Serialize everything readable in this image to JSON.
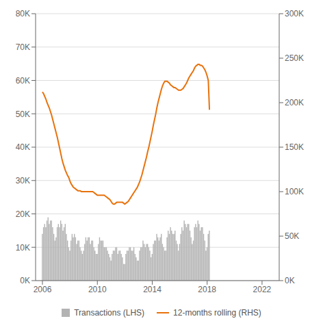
{
  "chart_data": {
    "type": "bar",
    "x": [
      2006,
      2006.0833333333333,
      2006.1666666666667,
      2006.25,
      2006.3333333333333,
      2006.4166666666667,
      2006.5,
      2006.5833333333333,
      2006.6666666666667,
      2006.75,
      2006.8333333333333,
      2006.9166666666667,
      2007,
      2007.0833333333333,
      2007.1666666666667,
      2007.25,
      2007.3333333333333,
      2007.4166666666667,
      2007.5,
      2007.5833333333333,
      2007.6666666666667,
      2007.75,
      2007.8333333333333,
      2007.9166666666667,
      2008,
      2008.0833333333333,
      2008.1666666666667,
      2008.25,
      2008.3333333333333,
      2008.4166666666667,
      2008.5,
      2008.5833333333333,
      2008.6666666666667,
      2008.75,
      2008.8333333333333,
      2008.9166666666667,
      2009,
      2009.0833333333333,
      2009.1666666666667,
      2009.25,
      2009.3333333333333,
      2009.4166666666667,
      2009.5,
      2009.5833333333333,
      2009.6666666666667,
      2009.75,
      2009.8333333333333,
      2009.9166666666667,
      2010,
      2010.0833333333333,
      2010.1666666666667,
      2010.25,
      2010.3333333333333,
      2010.4166666666667,
      2010.5,
      2010.5833333333333,
      2010.6666666666667,
      2010.75,
      2010.8333333333333,
      2010.9166666666667,
      2011,
      2011.0833333333333,
      2011.1666666666667,
      2011.25,
      2011.3333333333333,
      2011.4166666666667,
      2011.5,
      2011.5833333333333,
      2011.6666666666667,
      2011.75,
      2011.8333333333333,
      2011.9166666666667,
      2012,
      2012.0833333333333,
      2012.1666666666667,
      2012.25,
      2012.3333333333333,
      2012.4166666666667,
      2012.5,
      2012.5833333333333,
      2012.6666666666667,
      2012.75,
      2012.8333333333333,
      2012.9166666666667,
      2013,
      2013.0833333333333,
      2013.1666666666667,
      2013.25,
      2013.3333333333333,
      2013.4166666666667,
      2013.5,
      2013.5833333333333,
      2013.6666666666667,
      2013.75,
      2013.8333333333333,
      2013.9166666666667,
      2014,
      2014.0833333333333,
      2014.1666666666667,
      2014.25,
      2014.3333333333333,
      2014.4166666666667,
      2014.5,
      2014.5833333333333,
      2014.6666666666667,
      2014.75,
      2014.8333333333333,
      2014.9166666666667,
      2015,
      2015.0833333333333,
      2015.1666666666667,
      2015.25,
      2015.3333333333333,
      2015.4166666666667,
      2015.5,
      2015.5833333333333,
      2015.6666666666667,
      2015.75,
      2015.8333333333333,
      2015.9166666666667,
      2016,
      2016.0833333333333,
      2016.1666666666667,
      2016.25,
      2016.3333333333333,
      2016.4166666666667,
      2016.5,
      2016.5833333333333,
      2016.6666666666667,
      2016.75,
      2016.8333333333333,
      2016.9166666666667,
      2017,
      2017.0833333333333,
      2017.1666666666667,
      2017.25,
      2017.3333333333333,
      2017.4166666666667,
      2017.5,
      2017.5833333333333,
      2017.6666666666667,
      2017.75,
      2017.8333333333333,
      2017.9166666666667,
      2018,
      2018.0833333333333,
      2018.1666666666667
    ],
    "series": [
      {
        "name": "Transactions (LHS)",
        "type": "bar",
        "color": "#b3b3b3",
        "values": [
          14000,
          16000,
          17000,
          16000,
          18000,
          19000,
          17000,
          18000,
          18000,
          16000,
          14000,
          12000,
          13000,
          16000,
          17000,
          16000,
          18000,
          17000,
          15000,
          16000,
          17000,
          14000,
          12000,
          10000,
          9000,
          12000,
          14000,
          13000,
          14000,
          13000,
          11000,
          12000,
          12000,
          10000,
          9000,
          8000,
          9000,
          11000,
          13000,
          12000,
          13000,
          13000,
          11000,
          12000,
          12000,
          10000,
          9000,
          8000,
          8000,
          11000,
          13000,
          12000,
          12000,
          12000,
          10000,
          10000,
          10000,
          9000,
          8000,
          7000,
          6000,
          8000,
          9000,
          9000,
          10000,
          10000,
          8000,
          9000,
          9000,
          8000,
          7000,
          5000,
          5000,
          8000,
          9000,
          9000,
          10000,
          10000,
          9000,
          9000,
          10000,
          8000,
          7000,
          6000,
          6000,
          9000,
          10000,
          10000,
          12000,
          11000,
          10000,
          11000,
          11000,
          10000,
          9000,
          7000,
          8000,
          11000,
          12000,
          12000,
          14000,
          13000,
          12000,
          13000,
          14000,
          11000,
          10000,
          9000,
          9000,
          13000,
          15000,
          14000,
          16000,
          15000,
          14000,
          14000,
          15000,
          12000,
          11000,
          9000,
          11000,
          14000,
          16000,
          15000,
          18000,
          17000,
          16000,
          17000,
          17000,
          15000,
          13000,
          11000,
          12000,
          16000,
          17000,
          16000,
          18000,
          17000,
          15000,
          16000,
          16000,
          14000,
          12000,
          9000,
          10000,
          14000,
          15000
        ]
      },
      {
        "name": "12-months rolling (RHS)",
        "type": "line",
        "axis": "y2",
        "color": "#E8720C",
        "values": [
          212000,
          210000,
          207000,
          204000,
          200000,
          197000,
          194000,
          190000,
          186000,
          181000,
          176000,
          171000,
          166000,
          161000,
          155000,
          149000,
          143000,
          137000,
          132000,
          128000,
          124000,
          121000,
          118000,
          116000,
          112000,
          109000,
          107000,
          105000,
          104000,
          103000,
          102000,
          101000,
          101000,
          101000,
          100000,
          100000,
          100000,
          100000,
          100000,
          100000,
          100000,
          100000,
          100000,
          100000,
          100000,
          99000,
          98000,
          97000,
          96000,
          96000,
          96000,
          96000,
          96000,
          96000,
          96000,
          95000,
          94000,
          93000,
          92000,
          91000,
          89000,
          87000,
          86000,
          86000,
          87000,
          88000,
          88000,
          88000,
          88000,
          88000,
          88000,
          87000,
          86000,
          87000,
          88000,
          89000,
          91000,
          93000,
          95000,
          97000,
          99000,
          101000,
          103000,
          105000,
          108000,
          111000,
          115000,
          119000,
          124000,
          129000,
          134000,
          139000,
          145000,
          150000,
          156000,
          162000,
          168000,
          175000,
          181000,
          187000,
          194000,
          200000,
          205000,
          210000,
          215000,
          219000,
          222000,
          224000,
          224000,
          224000,
          223000,
          222000,
          220000,
          219000,
          218000,
          217000,
          217000,
          216000,
          215000,
          214000,
          214000,
          214000,
          215000,
          216000,
          218000,
          220000,
          222000,
          225000,
          228000,
          230000,
          232000,
          234000,
          236000,
          239000,
          241000,
          242000,
          243000,
          243000,
          242000,
          242000,
          241000,
          239000,
          237000,
          234000,
          230000,
          225000,
          192000
        ]
      }
    ],
    "xlim": [
      2005.5,
      2023.25
    ],
    "xticks": [
      2006,
      2010,
      2014,
      2018,
      2022
    ],
    "ylim": [
      0,
      80000
    ],
    "yticks": [
      {
        "value": 0,
        "label": "0K"
      },
      {
        "value": 10000,
        "label": "10K"
      },
      {
        "value": 20000,
        "label": "20K"
      },
      {
        "value": 30000,
        "label": "30K"
      },
      {
        "value": 40000,
        "label": "40K"
      },
      {
        "value": 50000,
        "label": "50K"
      },
      {
        "value": 60000,
        "label": "60K"
      },
      {
        "value": 70000,
        "label": "70K"
      },
      {
        "value": 80000,
        "label": "80K"
      }
    ],
    "y2lim": [
      0,
      300000
    ],
    "y2ticks": [
      {
        "value": 0,
        "label": "0K"
      },
      {
        "value": 50000,
        "label": "50K"
      },
      {
        "value": 100000,
        "label": "100K"
      },
      {
        "value": 150000,
        "label": "150K"
      },
      {
        "value": 200000,
        "label": "200K"
      },
      {
        "value": 250000,
        "label": "250K"
      },
      {
        "value": 300000,
        "label": "300K"
      }
    ],
    "grid": true,
    "legend": "bottom"
  }
}
